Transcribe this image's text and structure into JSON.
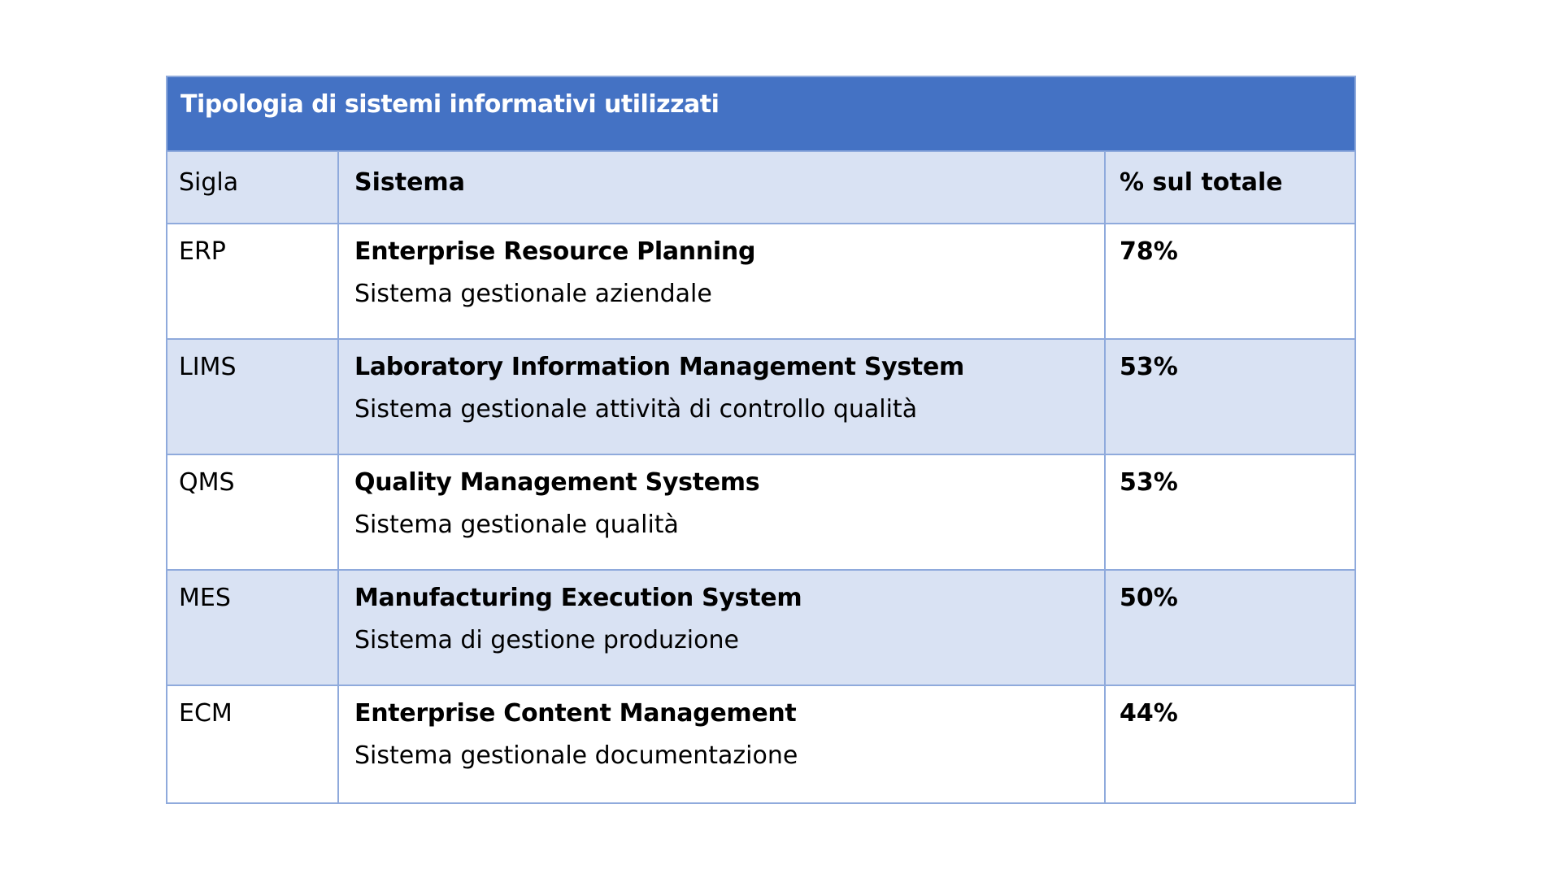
{
  "table": {
    "title": "Tipologia di sistemi informativi utilizzati",
    "columns": [
      {
        "key": "sigla",
        "label": "Sigla"
      },
      {
        "key": "sistema",
        "label": "Sistema"
      },
      {
        "key": "percent",
        "label": "% sul totale"
      }
    ],
    "rows": [
      {
        "sigla": "ERP",
        "name": "Enterprise Resource Planning",
        "description": "Sistema gestionale aziendale",
        "percent": "78%"
      },
      {
        "sigla": "LIMS",
        "name": "Laboratory Information Management System",
        "description": "Sistema gestionale attività di controllo qualità",
        "percent": "53%"
      },
      {
        "sigla": "QMS",
        "name": "Quality Management Systems",
        "description": "Sistema gestionale qualità",
        "percent": "53%"
      },
      {
        "sigla": "MES",
        "name": "Manufacturing Execution System",
        "description": "Sistema di gestione produzione",
        "percent": "50%"
      },
      {
        "sigla": "ECM",
        "name": "Enterprise Content Management",
        "description": "Sistema gestionale documentazione",
        "percent": "44%"
      }
    ],
    "colors": {
      "title_bg": "#4472C4",
      "title_text": "#FFFFFF",
      "band_bg": "#D9E2F3",
      "row_bg": "#FFFFFF",
      "border": "#8FAADC",
      "body_text": "#000000"
    }
  }
}
